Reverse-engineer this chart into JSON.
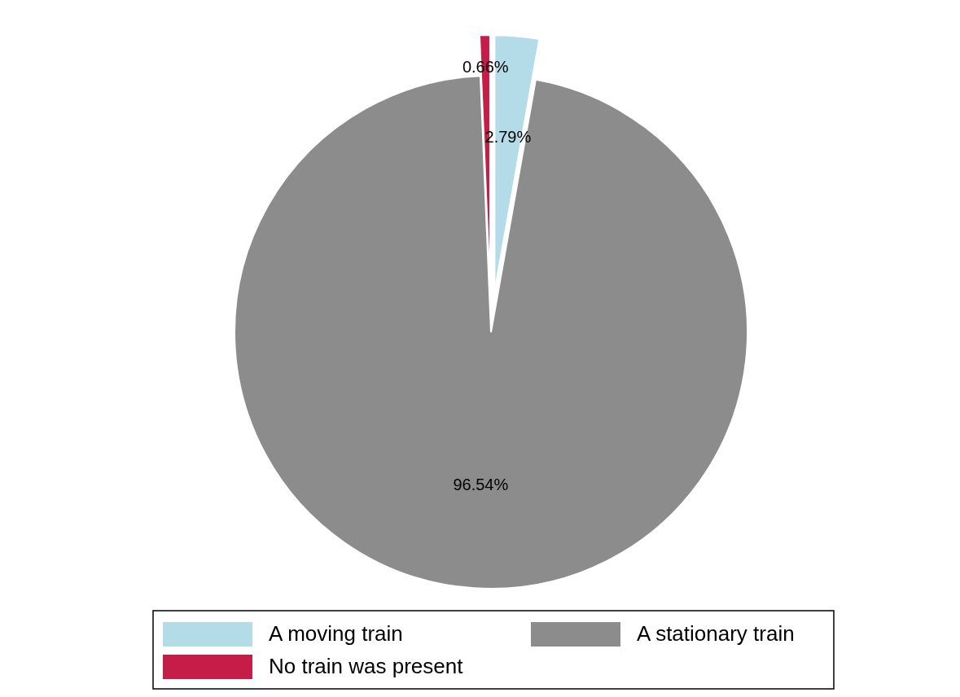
{
  "chart_data": {
    "type": "pie",
    "categories": [
      "A moving train",
      "A stationary train",
      "No train was present"
    ],
    "values": [
      2.79,
      96.54,
      0.66
    ],
    "colors": [
      "#b4dce8",
      "#8c8c8c",
      "#c41e48"
    ],
    "value_labels": [
      "2.79%",
      "96.54%",
      "0.66%"
    ],
    "legend": "bottom"
  }
}
